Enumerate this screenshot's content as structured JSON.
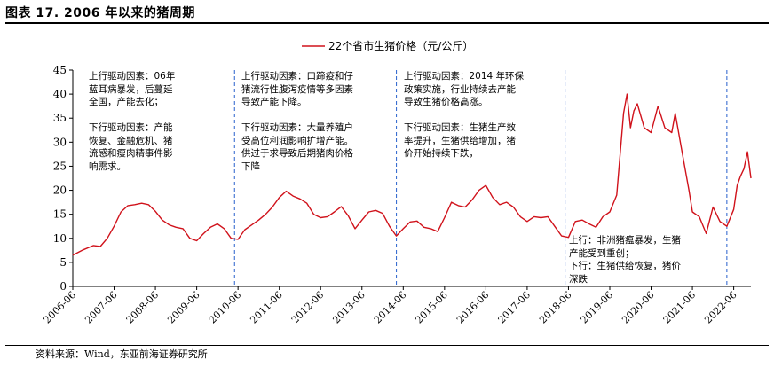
{
  "header": {
    "title": "图表 17. 2006 年以来的猪周期"
  },
  "footer": {
    "source": "资料来源：Wind，东亚前海证券研究所"
  },
  "chart_data": {
    "type": "line",
    "title": "",
    "xlabel": "",
    "ylabel": "",
    "ylim": [
      0,
      45
    ],
    "yticks": [
      0,
      5,
      10,
      15,
      20,
      25,
      30,
      35,
      40,
      45
    ],
    "xticks": [
      "2006-06",
      "2007-06",
      "2008-06",
      "2009-06",
      "2010-06",
      "2011-06",
      "2012-06",
      "2013-06",
      "2014-06",
      "2015-06",
      "2016-06",
      "2017-06",
      "2018-06",
      "2019-06",
      "2020-06",
      "2021-06",
      "2022-06"
    ],
    "x_start": "2006-06",
    "x_end": "2022-11",
    "legend": {
      "label": "22个省市生猪价格（元/公斤）",
      "position": "top-center"
    },
    "grid": false,
    "series": [
      {
        "name": "22个省市生猪价格（元/公斤）",
        "color": "#d0121b",
        "points": [
          [
            "2006-06",
            6.5
          ],
          [
            "2006-09",
            7.6
          ],
          [
            "2006-12",
            8.5
          ],
          [
            "2007-02",
            8.3
          ],
          [
            "2007-04",
            10.0
          ],
          [
            "2007-06",
            12.5
          ],
          [
            "2007-08",
            15.5
          ],
          [
            "2007-10",
            16.8
          ],
          [
            "2007-12",
            17.0
          ],
          [
            "2008-02",
            17.3
          ],
          [
            "2008-04",
            17.0
          ],
          [
            "2008-06",
            15.6
          ],
          [
            "2008-08",
            13.8
          ],
          [
            "2008-10",
            12.8
          ],
          [
            "2008-12",
            12.3
          ],
          [
            "2009-02",
            12.0
          ],
          [
            "2009-04",
            10.0
          ],
          [
            "2009-06",
            9.5
          ],
          [
            "2009-08",
            11.0
          ],
          [
            "2009-10",
            12.3
          ],
          [
            "2009-12",
            13.0
          ],
          [
            "2010-02",
            12.0
          ],
          [
            "2010-04",
            10.0
          ],
          [
            "2010-06",
            9.8
          ],
          [
            "2010-08",
            11.8
          ],
          [
            "2010-10",
            12.8
          ],
          [
            "2010-12",
            13.8
          ],
          [
            "2011-02",
            15.0
          ],
          [
            "2011-04",
            16.5
          ],
          [
            "2011-06",
            18.5
          ],
          [
            "2011-08",
            19.8
          ],
          [
            "2011-10",
            18.8
          ],
          [
            "2011-12",
            18.2
          ],
          [
            "2012-02",
            17.3
          ],
          [
            "2012-04",
            15.0
          ],
          [
            "2012-06",
            14.3
          ],
          [
            "2012-08",
            14.5
          ],
          [
            "2012-10",
            15.5
          ],
          [
            "2012-12",
            16.6
          ],
          [
            "2013-02",
            14.7
          ],
          [
            "2013-04",
            12.0
          ],
          [
            "2013-06",
            13.8
          ],
          [
            "2013-08",
            15.5
          ],
          [
            "2013-10",
            15.8
          ],
          [
            "2013-12",
            15.2
          ],
          [
            "2014-02",
            12.5
          ],
          [
            "2014-04",
            10.5
          ],
          [
            "2014-06",
            12.0
          ],
          [
            "2014-08",
            13.4
          ],
          [
            "2014-10",
            13.6
          ],
          [
            "2014-12",
            12.3
          ],
          [
            "2015-02",
            12.0
          ],
          [
            "2015-04",
            11.4
          ],
          [
            "2015-06",
            14.3
          ],
          [
            "2015-08",
            17.5
          ],
          [
            "2015-10",
            16.8
          ],
          [
            "2015-12",
            16.5
          ],
          [
            "2016-02",
            18.0
          ],
          [
            "2016-04",
            20.0
          ],
          [
            "2016-06",
            21.0
          ],
          [
            "2016-08",
            18.5
          ],
          [
            "2016-10",
            17.0
          ],
          [
            "2016-12",
            17.5
          ],
          [
            "2017-02",
            16.5
          ],
          [
            "2017-04",
            14.5
          ],
          [
            "2017-06",
            13.5
          ],
          [
            "2017-08",
            14.5
          ],
          [
            "2017-10",
            14.3
          ],
          [
            "2017-12",
            14.5
          ],
          [
            "2018-02",
            12.5
          ],
          [
            "2018-04",
            10.5
          ],
          [
            "2018-06",
            10.2
          ],
          [
            "2018-08",
            13.5
          ],
          [
            "2018-10",
            13.8
          ],
          [
            "2018-12",
            13.0
          ],
          [
            "2019-02",
            12.3
          ],
          [
            "2019-04",
            14.5
          ],
          [
            "2019-06",
            15.5
          ],
          [
            "2019-08",
            19.0
          ],
          [
            "2019-10",
            36.0
          ],
          [
            "2019-11",
            40.0
          ],
          [
            "2019-12",
            33.0
          ],
          [
            "2020-01",
            36.5
          ],
          [
            "2020-02",
            38.0
          ],
          [
            "2020-04",
            33.0
          ],
          [
            "2020-06",
            32.0
          ],
          [
            "2020-08",
            37.5
          ],
          [
            "2020-10",
            33.0
          ],
          [
            "2020-12",
            32.0
          ],
          [
            "2021-01",
            36.0
          ],
          [
            "2021-03",
            28.0
          ],
          [
            "2021-05",
            20.0
          ],
          [
            "2021-06",
            15.5
          ],
          [
            "2021-08",
            14.5
          ],
          [
            "2021-10",
            11.0
          ],
          [
            "2021-12",
            16.5
          ],
          [
            "2022-02",
            13.5
          ],
          [
            "2022-04",
            12.5
          ],
          [
            "2022-06",
            16.0
          ],
          [
            "2022-07",
            21.0
          ],
          [
            "2022-08",
            23.0
          ],
          [
            "2022-09",
            24.5
          ],
          [
            "2022-10",
            28.0
          ],
          [
            "2022-11",
            22.5
          ]
        ]
      }
    ],
    "cycle_boundaries": [
      "2010-05",
      "2014-04",
      "2018-05",
      "2022-04"
    ],
    "annotations": [
      {
        "text": "上行驱动因素：06年\n蓝耳病暴发，后蔓延\n全国，产能去化；\n\n下行驱动因素：产能\n恢复、金融危机、猪\n流感和瘦肉精事件影\n响需求。"
      },
      {
        "text": "上行驱动因素：口蹄疫和仔\n猪流行性腹泻疫情等多因素\n导致产能下降。\n\n下行驱动因素：大量养殖户\n受高位利润影响扩增产能。\n供过于求导致后期猪肉价格\n下降"
      },
      {
        "text": "上行驱动因素：2014 年环保\n政策实施，行业持续去产能\n导致生猪价格高涨。\n\n下行驱动因素：生猪生产效\n率提升，生猪供给增加，猪\n价开始持续下跌，"
      },
      {
        "text": "上行：非洲猪瘟暴发，生猪\n产能受到重创；\n下行：生猪供给恢复，猪价\n深跌"
      }
    ]
  }
}
